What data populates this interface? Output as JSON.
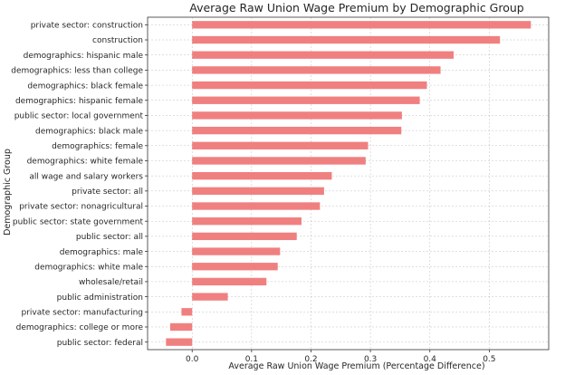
{
  "chart_data": {
    "type": "bar",
    "orientation": "horizontal",
    "title": "Average Raw Union Wage Premium by Demographic Group",
    "xlabel": "Average Raw Union Wage Premium (Percentage Difference)",
    "ylabel": "Demographic Group",
    "xlim": [
      -0.075,
      0.6
    ],
    "xticks": [
      0.0,
      0.1,
      0.2,
      0.3,
      0.4,
      0.5
    ],
    "xtick_labels": [
      "0.0",
      "0.1",
      "0.2",
      "0.3",
      "0.4",
      "0.5"
    ],
    "grid": true,
    "bar_color": "#f08080",
    "categories": [
      "private sector: construction",
      "construction",
      "demographics: hispanic male",
      "demographics: less than college",
      "demographics: black female",
      "demographics: hispanic female",
      "public sector: local government",
      "demographics: black male",
      "demographics: female",
      "demographics: white female",
      "all wage and salary workers",
      "private sector: all",
      "private sector: nonagricultural",
      "public sector: state government",
      "public sector: all",
      "demographics: male",
      "demographics: white male",
      "wholesale/retail",
      "public administration",
      "private sector: manufacturing",
      "demographics: college or more",
      "public sector: federal"
    ],
    "values": [
      0.57,
      0.518,
      0.44,
      0.418,
      0.395,
      0.383,
      0.353,
      0.352,
      0.296,
      0.292,
      0.235,
      0.222,
      0.215,
      0.184,
      0.176,
      0.148,
      0.144,
      0.125,
      0.06,
      -0.018,
      -0.037,
      -0.044
    ]
  }
}
